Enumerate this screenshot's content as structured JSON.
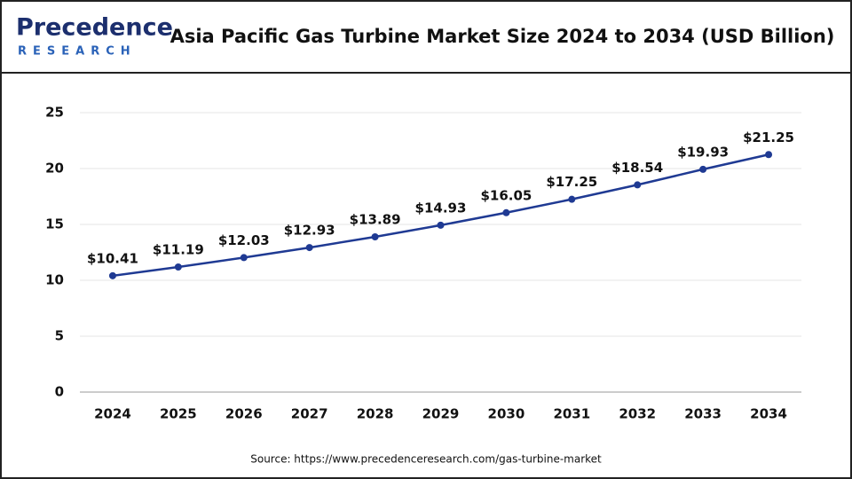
{
  "logo": {
    "name": "Precedence",
    "tagline": "RESEARCH"
  },
  "chart_data": {
    "type": "line",
    "title": "Asia Pacific Gas Turbine Market Size 2024 to 2034 (USD Billion)",
    "categories": [
      "2024",
      "2025",
      "2026",
      "2027",
      "2028",
      "2029",
      "2030",
      "2031",
      "2032",
      "2033",
      "2034"
    ],
    "series": [
      {
        "name": "Market Size",
        "color": "#1f3a93",
        "values": [
          10.41,
          11.19,
          12.03,
          12.93,
          13.89,
          14.93,
          16.05,
          17.25,
          18.54,
          19.93,
          21.25
        ],
        "value_labels": [
          "$10.41",
          "$11.19",
          "$12.03",
          "$12.93",
          "$13.89",
          "$14.93",
          "$16.05",
          "$17.25",
          "$18.54",
          "$19.93",
          "$21.25"
        ]
      }
    ],
    "ylim": [
      0,
      25
    ],
    "yticks": [
      0,
      5,
      10,
      15,
      20,
      25
    ],
    "grid": true
  },
  "source": "Source: https://www.precedenceresearch.com/gas-turbine-market"
}
